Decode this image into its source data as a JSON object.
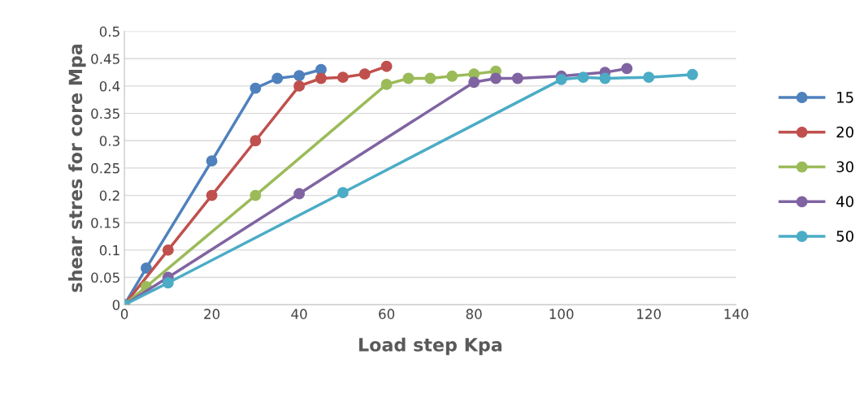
{
  "chart_data": {
    "type": "line",
    "xlabel": "Load step Kpa",
    "ylabel": "shear stres for core Mpa",
    "xlim": [
      0,
      140
    ],
    "xticks": [
      0,
      20,
      40,
      60,
      80,
      100,
      120,
      140
    ],
    "ylim": [
      0,
      0.5
    ],
    "yticks": [
      0,
      0.05,
      0.1,
      0.15,
      0.2,
      0.25,
      0.3,
      0.35,
      0.4,
      0.45,
      0.5
    ],
    "grid": "y",
    "legend": "right",
    "marker": "circle",
    "line_style": "solid",
    "series": [
      {
        "name": "15",
        "color": "#4f81bd",
        "x": [
          0,
          5,
          20,
          30,
          35,
          40,
          45
        ],
        "values": [
          0,
          0.067,
          0.263,
          0.396,
          0.414,
          0.419,
          0.43
        ]
      },
      {
        "name": "20",
        "color": "#c0504d",
        "x": [
          0,
          10,
          20,
          30,
          40,
          45,
          50,
          55,
          60
        ],
        "values": [
          0,
          0.1,
          0.2,
          0.3,
          0.4,
          0.414,
          0.416,
          0.422,
          0.436
        ]
      },
      {
        "name": "30",
        "color": "#9bbb59",
        "x": [
          0,
          5,
          30,
          60,
          65,
          70,
          75,
          80,
          85
        ],
        "values": [
          0,
          0.033,
          0.2,
          0.403,
          0.414,
          0.414,
          0.418,
          0.422,
          0.427
        ]
      },
      {
        "name": "40",
        "color": "#8064a2",
        "x": [
          0,
          10,
          40,
          80,
          85,
          90,
          100,
          110,
          115
        ],
        "values": [
          0,
          0.05,
          0.203,
          0.407,
          0.414,
          0.414,
          0.418,
          0.425,
          0.432
        ]
      },
      {
        "name": "50",
        "color": "#4bacc6",
        "x": [
          0,
          10,
          50,
          100,
          105,
          110,
          120,
          130
        ],
        "values": [
          0,
          0.04,
          0.205,
          0.412,
          0.416,
          0.414,
          0.416,
          0.421
        ]
      }
    ]
  }
}
